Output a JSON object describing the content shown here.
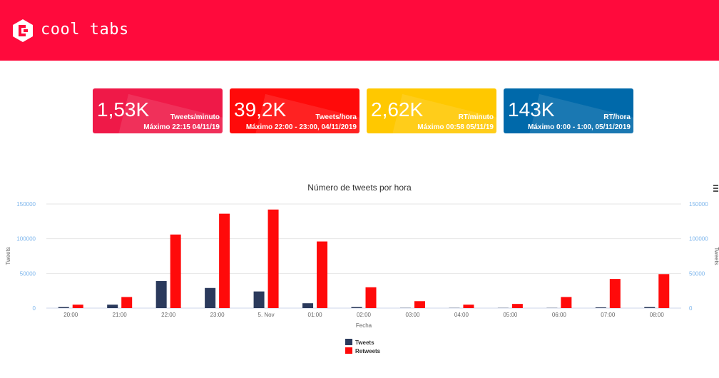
{
  "header": {
    "brand": "cool tabs",
    "color": "#ff0a3c"
  },
  "cards": [
    {
      "value": "1,53K",
      "unit": "Tweets/minuto",
      "max": "Máximo 22:15 04/11/19",
      "color": "#ef1948"
    },
    {
      "value": "39,2K",
      "unit": "Tweets/hora",
      "max": "Máximo 22:00 - 23:00, 04/11/2019",
      "color": "#ff0a0a"
    },
    {
      "value": "2,62K",
      "unit": "RT/minuto",
      "max": "Máximo 00:58 05/11/19",
      "color": "#ffc800"
    },
    {
      "value": "143K",
      "unit": "RT/hora",
      "max": "Máximo 0:00 - 1:00, 05/11/2019",
      "color": "#0069aa"
    }
  ],
  "chart_data": {
    "type": "bar",
    "title": "Número de tweets por hora",
    "xlabel": "Fecha",
    "ylabel": "Tweets",
    "ylabel_right": "Tweets",
    "ylim": [
      0,
      150000
    ],
    "yticks": [
      "0",
      "50000",
      "100000",
      "150000"
    ],
    "categories": [
      "20:00",
      "21:00",
      "22:00",
      "23:00",
      "5. Nov",
      "01:00",
      "02:00",
      "03:00",
      "04:00",
      "05:00",
      "06:00",
      "07:00",
      "08:00"
    ],
    "series": [
      {
        "name": "Tweets",
        "color": "#2b3a5c",
        "values": [
          1500,
          5000,
          39000,
          29000,
          24000,
          7000,
          1500,
          300,
          300,
          300,
          300,
          1000,
          1500
        ]
      },
      {
        "name": "Retweets",
        "color": "#ff0a0a",
        "values": [
          5000,
          16000,
          106000,
          136000,
          142000,
          96000,
          30000,
          10000,
          5000,
          6000,
          16000,
          42000,
          49000
        ]
      }
    ],
    "grid": true,
    "legend": "bottom-center"
  }
}
